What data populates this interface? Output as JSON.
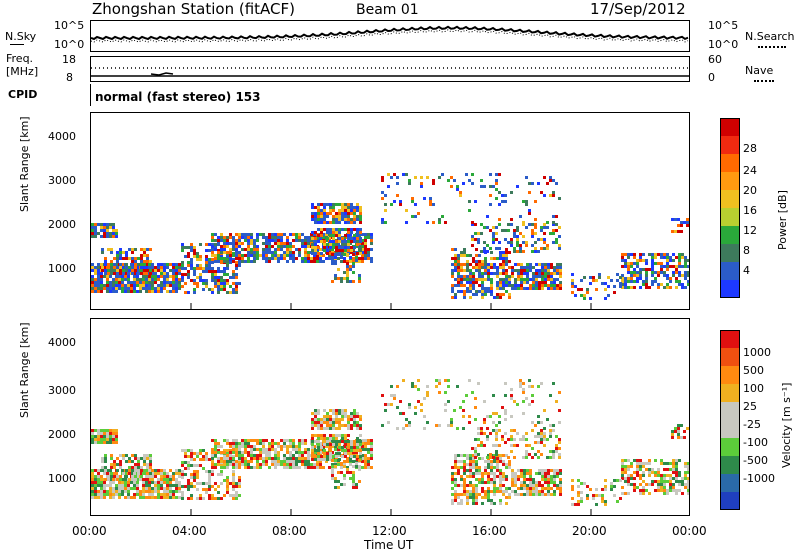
{
  "header": {
    "station": "Zhongshan Station (fitACF)",
    "beam": "Beam 01",
    "date": "17/Sep/2012"
  },
  "noise_panel": {
    "left_label": "N.Sky",
    "right_label": "N.Search",
    "left_ticks": [
      "10^5",
      "10^0"
    ],
    "right_ticks": [
      "10^5",
      "10^0"
    ]
  },
  "freq_panel": {
    "left_label_1": "Freq.",
    "left_label_2": "[MHz]",
    "left_ticks": [
      "18",
      "8"
    ],
    "right_label": "Nave",
    "right_ticks": [
      "60",
      "0"
    ]
  },
  "cpid": {
    "label": "CPID",
    "text": "normal (fast stereo) 153"
  },
  "chart_data": [
    {
      "type": "heatmap",
      "ylabel": "Slant Range [km]",
      "xlabel": "Time UT",
      "x_range_hours": [
        0,
        24
      ],
      "ylim_km": [
        180,
        4600
      ],
      "y_ticks": [
        "1000",
        "2000",
        "3000",
        "4000"
      ],
      "x_ticks": [
        "00:00",
        "04:00",
        "08:00",
        "12:00",
        "16:00",
        "20:00",
        "00:00"
      ],
      "colorbar": {
        "label": "Power [dB]",
        "ticks": [
          "4",
          "8",
          "12",
          "16",
          "20",
          "24",
          "28"
        ],
        "colors": [
          "#1d39ff",
          "#2b5cc8",
          "#3d7a5c",
          "#2aa83a",
          "#b8d030",
          "#f0c020",
          "#ff9a10",
          "#ff6a00",
          "#f02a10",
          "#d00000"
        ]
      }
    },
    {
      "type": "heatmap",
      "ylabel": "Slant Range [km]",
      "xlabel": "Time UT",
      "x_range_hours": [
        0,
        24
      ],
      "ylim_km": [
        180,
        4600
      ],
      "y_ticks": [
        "1000",
        "2000",
        "3000",
        "4000"
      ],
      "x_ticks": [
        "00:00",
        "04:00",
        "08:00",
        "12:00",
        "16:00",
        "20:00",
        "00:00"
      ],
      "colorbar": {
        "label": "Velocity [m s⁻¹]",
        "ticks": [
          "1000",
          "500",
          "100",
          "25",
          "-25",
          "-100",
          "-500",
          "-1000"
        ],
        "colors": [
          "#1f3fbf",
          "#2a6aa8",
          "#2e8a4a",
          "#5ccc3a",
          "#c8c8c0",
          "#c8c8c0",
          "#f0b020",
          "#ff8a10",
          "#f05010",
          "#e01010"
        ]
      }
    }
  ]
}
